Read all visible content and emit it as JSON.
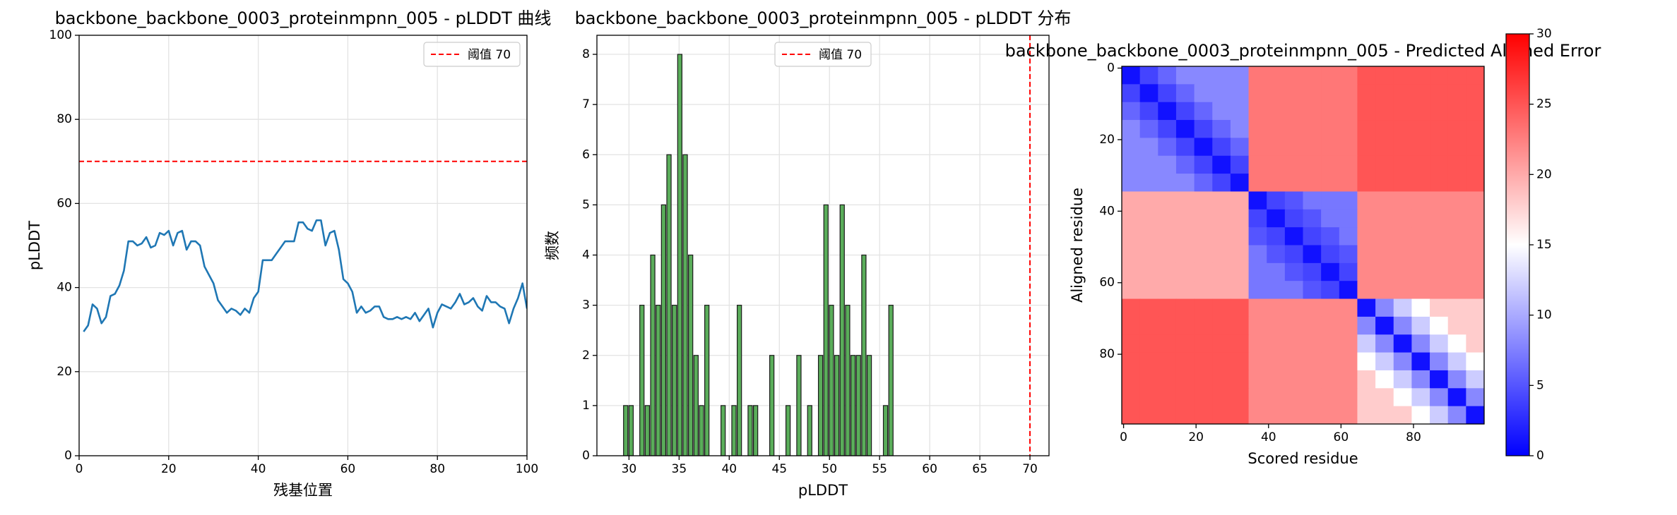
{
  "chart_data": [
    {
      "type": "line",
      "title": "backbone_backbone_0003_proteinmpnn_005 - pLDDT 曲线",
      "xlabel": "残基位置",
      "ylabel": "pLDDT",
      "x": [
        1,
        2,
        3,
        4,
        5,
        6,
        7,
        8,
        9,
        10,
        11,
        12,
        13,
        14,
        15,
        16,
        17,
        18,
        19,
        20,
        21,
        22,
        23,
        24,
        25,
        26,
        27,
        28,
        29,
        30,
        31,
        32,
        33,
        34,
        35,
        36,
        37,
        38,
        39,
        40,
        41,
        42,
        43,
        44,
        45,
        46,
        47,
        48,
        49,
        50,
        51,
        52,
        53,
        54,
        55,
        56,
        57,
        58,
        59,
        60,
        61,
        62,
        63,
        64,
        65,
        66,
        67,
        68,
        69,
        70,
        71,
        72,
        73,
        74,
        75,
        76,
        77,
        78,
        79,
        80,
        81,
        82,
        83,
        84,
        85,
        86,
        87,
        88,
        89,
        90,
        91,
        92,
        93,
        94,
        95,
        96,
        97,
        98,
        99,
        100
      ],
      "values": [
        29.5,
        31,
        36,
        35,
        31.5,
        33,
        38,
        38.5,
        40.5,
        44,
        51,
        51,
        50,
        50.5,
        52,
        49.5,
        50,
        53,
        52.5,
        53.5,
        50,
        53,
        53.5,
        49,
        51,
        51,
        50,
        45,
        43,
        41,
        37,
        35.5,
        34,
        35,
        34.5,
        33.5,
        35,
        34,
        37.5,
        39,
        46.5,
        46.5,
        46.5,
        48,
        49.5,
        51,
        51,
        51,
        55.5,
        55.5,
        54,
        53.5,
        56,
        56,
        50,
        53,
        53.5,
        49,
        42,
        41,
        39,
        34,
        35.5,
        34,
        34.5,
        35.5,
        35.5,
        33,
        32.5,
        32.5,
        33,
        32.5,
        33,
        32.5,
        34,
        32,
        33.5,
        35,
        30.5,
        34,
        36,
        35.5,
        35,
        36.5,
        38.5,
        36,
        36.5,
        37.5,
        35.5,
        34.5,
        38,
        36.5,
        36.5,
        35.5,
        35,
        31.5,
        35,
        37.5,
        41,
        35
      ],
      "color": "#1f77b4",
      "xlim": [
        0,
        100
      ],
      "ylim": [
        0,
        100
      ],
      "xticks": [
        0,
        20,
        40,
        60,
        80,
        100
      ],
      "yticks": [
        0,
        20,
        40,
        60,
        80,
        100
      ],
      "grid": true,
      "hline": {
        "value": 70,
        "label": "阈值 70",
        "color": "red"
      },
      "legend": "upper right"
    },
    {
      "type": "histogram",
      "title": "backbone_backbone_0003_proteinmpnn_005 - pLDDT 分布",
      "xlabel": "pLDDT",
      "ylabel": "频数",
      "bins": [
        29.4,
        29.94,
        30.48,
        31.02,
        31.56,
        32.1,
        32.64,
        33.18,
        33.72,
        34.26,
        34.8,
        35.34,
        35.88,
        36.42,
        36.96,
        37.5,
        38.04,
        38.58,
        39.12,
        39.66,
        40.2,
        40.74,
        41.28,
        41.82,
        42.36,
        42.9,
        43.44,
        43.98,
        44.52,
        45.06,
        45.6,
        46.14,
        46.68,
        47.22,
        47.76,
        48.3,
        48.84,
        49.38,
        49.92,
        50.46,
        51.0,
        51.54,
        52.08,
        52.62,
        53.16,
        53.7,
        54.24,
        54.78,
        55.32,
        55.86,
        56.4
      ],
      "values": [
        1,
        1,
        0,
        3,
        1,
        4,
        3,
        5,
        6,
        3,
        8,
        6,
        4,
        2,
        1,
        3,
        0,
        0,
        1,
        0,
        1,
        3,
        0,
        1,
        1,
        0,
        0,
        2,
        0,
        0,
        1,
        0,
        2,
        0,
        1,
        0,
        2,
        5,
        3,
        2,
        5,
        3,
        2,
        2,
        4,
        2,
        0,
        0,
        1,
        3
      ],
      "color": "#5aad5a",
      "xlim": [
        26.8,
        71.9
      ],
      "ylim": [
        0,
        8.38
      ],
      "xticks": [
        30,
        35,
        40,
        45,
        50,
        55,
        60,
        65,
        70
      ],
      "yticks": [
        0,
        1,
        2,
        3,
        4,
        5,
        6,
        7,
        8
      ],
      "grid": true,
      "vline": {
        "value": 70,
        "label": "阈值 70",
        "color": "red"
      },
      "legend": "upper center"
    },
    {
      "type": "heatmap",
      "title": "backbone_backbone_0003_proteinmpnn_005 - Predicted Aligned Error",
      "xlabel": "Scored residue",
      "ylabel": "Aligned residue",
      "z": [
        [
          1,
          4,
          6,
          8,
          8,
          8,
          8,
          23,
          23,
          23,
          23,
          23,
          23,
          25,
          25,
          25,
          25,
          25,
          25,
          25
        ],
        [
          4,
          1,
          4,
          6,
          8,
          8,
          8,
          23,
          23,
          23,
          23,
          23,
          23,
          25,
          25,
          25,
          25,
          25,
          25,
          25
        ],
        [
          6,
          4,
          1,
          4,
          6,
          8,
          8,
          23,
          23,
          23,
          23,
          23,
          23,
          25,
          25,
          25,
          25,
          25,
          25,
          25
        ],
        [
          8,
          6,
          4,
          1,
          4,
          6,
          8,
          23,
          23,
          23,
          23,
          23,
          23,
          25,
          25,
          25,
          25,
          25,
          25,
          25
        ],
        [
          8,
          8,
          6,
          4,
          1,
          4,
          6,
          23,
          23,
          23,
          23,
          23,
          23,
          25,
          25,
          25,
          25,
          25,
          25,
          25
        ],
        [
          8,
          8,
          8,
          6,
          4,
          1,
          4,
          23,
          23,
          23,
          23,
          23,
          23,
          25,
          25,
          25,
          25,
          25,
          25,
          25
        ],
        [
          8,
          8,
          8,
          8,
          6,
          4,
          1,
          23,
          23,
          23,
          23,
          23,
          23,
          25,
          25,
          25,
          25,
          25,
          25,
          25
        ],
        [
          20,
          20,
          20,
          20,
          20,
          20,
          20,
          1,
          4,
          5,
          7,
          7,
          7,
          22,
          22,
          22,
          22,
          22,
          22,
          22
        ],
        [
          20,
          20,
          20,
          20,
          20,
          20,
          20,
          4,
          1,
          4,
          5,
          7,
          7,
          22,
          22,
          22,
          22,
          22,
          22,
          22
        ],
        [
          20,
          20,
          20,
          20,
          20,
          20,
          20,
          5,
          4,
          1,
          4,
          5,
          7,
          22,
          22,
          22,
          22,
          22,
          22,
          22
        ],
        [
          20,
          20,
          20,
          20,
          20,
          20,
          20,
          7,
          5,
          4,
          1,
          4,
          5,
          22,
          22,
          22,
          22,
          22,
          22,
          22
        ],
        [
          20,
          20,
          20,
          20,
          20,
          20,
          20,
          7,
          7,
          5,
          4,
          1,
          4,
          22,
          22,
          22,
          22,
          22,
          22,
          22
        ],
        [
          20,
          20,
          20,
          20,
          20,
          20,
          20,
          7,
          7,
          7,
          5,
          4,
          1,
          22,
          22,
          22,
          22,
          22,
          22,
          22
        ],
        [
          25,
          25,
          25,
          25,
          25,
          25,
          25,
          22,
          22,
          22,
          22,
          22,
          22,
          1,
          8,
          12,
          15,
          18,
          18,
          18
        ],
        [
          25,
          25,
          25,
          25,
          25,
          25,
          25,
          22,
          22,
          22,
          22,
          22,
          22,
          8,
          1,
          8,
          12,
          15,
          18,
          18
        ],
        [
          25,
          25,
          25,
          25,
          25,
          25,
          25,
          22,
          22,
          22,
          22,
          22,
          22,
          12,
          8,
          1,
          8,
          12,
          15,
          18
        ],
        [
          25,
          25,
          25,
          25,
          25,
          25,
          25,
          22,
          22,
          22,
          22,
          22,
          22,
          15,
          12,
          8,
          1,
          8,
          12,
          15
        ],
        [
          25,
          25,
          25,
          25,
          25,
          25,
          25,
          22,
          22,
          22,
          22,
          22,
          22,
          18,
          15,
          12,
          8,
          1,
          8,
          12
        ],
        [
          25,
          25,
          25,
          25,
          25,
          25,
          25,
          22,
          22,
          22,
          22,
          22,
          22,
          18,
          18,
          15,
          12,
          8,
          1,
          8
        ],
        [
          25,
          25,
          25,
          25,
          25,
          25,
          25,
          22,
          22,
          22,
          22,
          22,
          22,
          18,
          18,
          18,
          15,
          12,
          8,
          1
        ]
      ],
      "xlim": [
        -0.5,
        99.5
      ],
      "ylim": [
        99.5,
        -0.5
      ],
      "xticks": [
        0,
        20,
        40,
        60,
        80
      ],
      "yticks": [
        0,
        20,
        40,
        60,
        80
      ],
      "colorbar": {
        "cmap": "bwr",
        "lim": [
          0,
          30
        ],
        "ticks": [
          0,
          5,
          10,
          15,
          20,
          25,
          30
        ]
      }
    }
  ]
}
